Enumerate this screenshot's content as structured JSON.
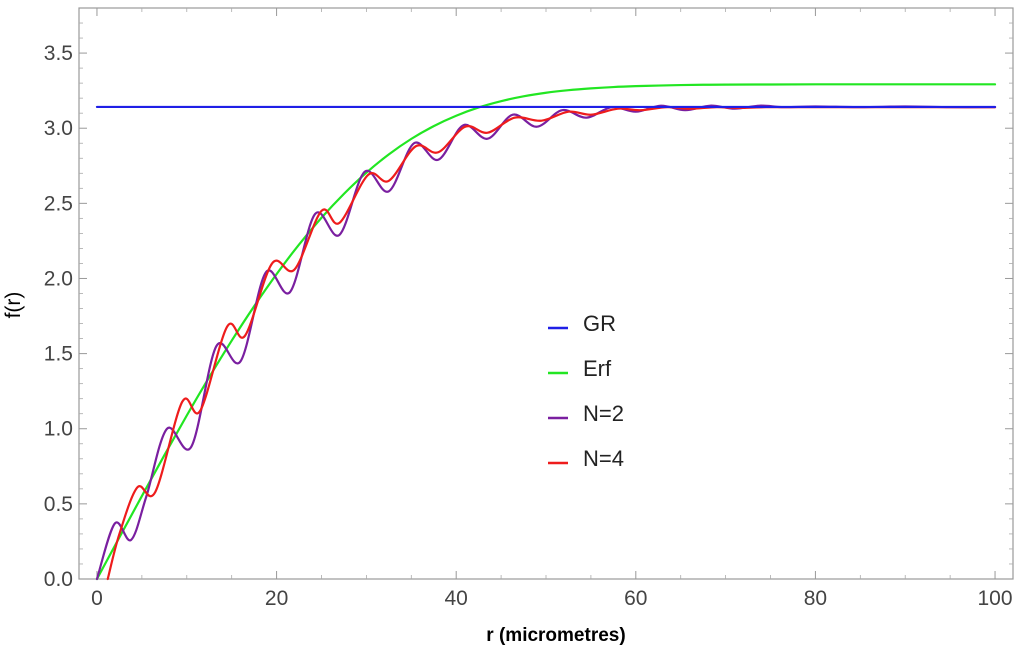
{
  "chart_data": {
    "type": "line",
    "title": "",
    "xlabel": "r (micrometres)",
    "ylabel": "f(r)",
    "xlim": [
      -2,
      102
    ],
    "ylim": [
      0,
      3.8
    ],
    "x_ticks": [
      0,
      20,
      40,
      60,
      80,
      100
    ],
    "x_tick_labels": [
      "0",
      "20",
      "40",
      "60",
      "80",
      "100"
    ],
    "y_ticks": [
      0.0,
      0.5,
      1.0,
      1.5,
      2.0,
      2.5,
      3.0,
      3.5
    ],
    "y_tick_labels": [
      "0.0",
      "0.5",
      "1.0",
      "1.5",
      "2.0",
      "2.5",
      "3.0",
      "3.5"
    ],
    "grid": false,
    "legend_position": "center",
    "series": [
      {
        "name": "GR",
        "color": "#1f1fe6",
        "x": [
          0,
          100
        ],
        "y": [
          3.1416,
          3.1416
        ]
      },
      {
        "name": "Erf",
        "color": "#22e622",
        "x": [
          0,
          2.5,
          5,
          7.5,
          10,
          12.5,
          15,
          17.5,
          20,
          22.5,
          25,
          27.5,
          30,
          32.5,
          35,
          37.5,
          40,
          42.5,
          45,
          47.5,
          50,
          52.5,
          55,
          57.5,
          60,
          62.5,
          65,
          67.5,
          70,
          75,
          80,
          85,
          90,
          95,
          100
        ],
        "y": [
          0.0,
          0.277,
          0.552,
          0.823,
          1.088,
          1.343,
          1.586,
          1.815,
          2.029,
          2.226,
          2.404,
          2.563,
          2.704,
          2.826,
          2.929,
          3.014,
          3.083,
          3.138,
          3.18,
          3.212,
          3.236,
          3.253,
          3.265,
          3.274,
          3.28,
          3.284,
          3.287,
          3.289,
          3.29,
          3.291,
          3.292,
          3.292,
          3.292,
          3.292,
          3.292
        ]
      },
      {
        "name": "N=2",
        "color": "#7a1fa0",
        "x": [
          0,
          2,
          3.8,
          5.5,
          7.8,
          10.5,
          13.3,
          16,
          18.8,
          21.5,
          24.3,
          27,
          29.8,
          32.5,
          35.3,
          38,
          40.8,
          43.5,
          46.3,
          49,
          51.8,
          54.5,
          57.3,
          60,
          62.8,
          65.5,
          68.3,
          71,
          73.8,
          76.5,
          80,
          85,
          90,
          95,
          100
        ],
        "y": [
          0.0,
          0.37,
          0.26,
          0.55,
          1.0,
          0.88,
          1.55,
          1.45,
          2.04,
          1.91,
          2.43,
          2.29,
          2.71,
          2.58,
          2.9,
          2.79,
          3.02,
          2.93,
          3.09,
          3.01,
          3.12,
          3.07,
          3.14,
          3.11,
          3.15,
          3.12,
          3.15,
          3.13,
          3.15,
          3.14,
          3.145,
          3.14,
          3.145,
          3.14,
          3.14
        ]
      },
      {
        "name": "N=4",
        "color": "#ee1c1c",
        "x": [
          1.2,
          2.5,
          4.5,
          6.5,
          9.5,
          11.5,
          14.5,
          16.5,
          19.5,
          22,
          25,
          27,
          30.2,
          32.5,
          35.5,
          38,
          41,
          43.5,
          46.5,
          49.5,
          52.5,
          55,
          58,
          60.5,
          63.5,
          66,
          69,
          71.5,
          74.5,
          80,
          85,
          90,
          95,
          100
        ],
        "y": [
          0.0,
          0.3,
          0.61,
          0.58,
          1.18,
          1.12,
          1.68,
          1.62,
          2.1,
          2.06,
          2.45,
          2.37,
          2.69,
          2.65,
          2.88,
          2.84,
          3.01,
          2.97,
          3.07,
          3.05,
          3.11,
          3.09,
          3.13,
          3.12,
          3.14,
          3.13,
          3.14,
          3.135,
          3.14,
          3.14,
          3.14,
          3.14,
          3.14,
          3.14
        ]
      }
    ]
  }
}
